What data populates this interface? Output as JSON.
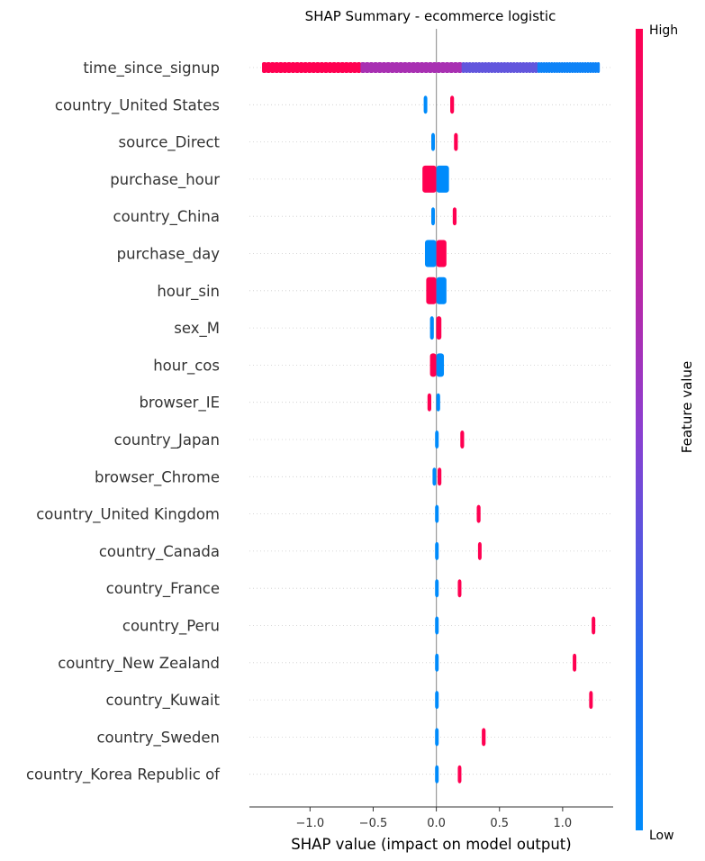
{
  "chart_data": {
    "type": "scatter",
    "title": "SHAP Summary - ecommerce logistic",
    "xlabel": "SHAP value (impact on model output)",
    "ylabel": "",
    "xlim": [
      -1.48,
      1.4
    ],
    "xticks": [
      -1.0,
      -0.5,
      0.0,
      0.5,
      1.0
    ],
    "xtick_labels": [
      "−1.0",
      "−0.5",
      "0.0",
      "0.5",
      "1.0"
    ],
    "colorbar": {
      "label": "Feature value",
      "high": "High",
      "low": "Low",
      "low_color": "#008bfb",
      "high_color": "#ff0051"
    },
    "features": [
      {
        "name": "time_since_signup",
        "groups": [
          {
            "from": -1.38,
            "to": -0.6,
            "value": "high"
          },
          {
            "from": -0.6,
            "to": 0.2,
            "value": "mid"
          },
          {
            "from": 0.2,
            "to": 0.8,
            "value": "midlow"
          },
          {
            "from": 0.8,
            "to": 1.29,
            "value": "low"
          }
        ]
      },
      {
        "name": "country_United States",
        "groups": [
          {
            "from": -0.1,
            "to": -0.08,
            "value": "low"
          },
          {
            "from": 0.11,
            "to": 0.14,
            "value": "high"
          }
        ]
      },
      {
        "name": "source_Direct",
        "groups": [
          {
            "from": -0.04,
            "to": -0.02,
            "value": "low"
          },
          {
            "from": 0.14,
            "to": 0.17,
            "value": "high"
          }
        ]
      },
      {
        "name": "purchase_hour",
        "groups": [
          {
            "from": -0.11,
            "to": 0.0,
            "value": "high"
          },
          {
            "from": 0.0,
            "to": 0.1,
            "value": "low"
          }
        ]
      },
      {
        "name": "country_China",
        "groups": [
          {
            "from": -0.04,
            "to": -0.02,
            "value": "low"
          },
          {
            "from": 0.13,
            "to": 0.16,
            "value": "high"
          }
        ]
      },
      {
        "name": "purchase_day",
        "groups": [
          {
            "from": -0.09,
            "to": 0.0,
            "value": "low"
          },
          {
            "from": 0.0,
            "to": 0.08,
            "value": "high"
          }
        ]
      },
      {
        "name": "hour_sin",
        "groups": [
          {
            "from": -0.08,
            "to": 0.0,
            "value": "high"
          },
          {
            "from": 0.0,
            "to": 0.08,
            "value": "low"
          }
        ]
      },
      {
        "name": "sex_M",
        "groups": [
          {
            "from": -0.05,
            "to": -0.02,
            "value": "low"
          },
          {
            "from": 0.0,
            "to": 0.04,
            "value": "high"
          }
        ]
      },
      {
        "name": "hour_cos",
        "groups": [
          {
            "from": -0.05,
            "to": 0.0,
            "value": "high"
          },
          {
            "from": 0.0,
            "to": 0.06,
            "value": "low"
          }
        ]
      },
      {
        "name": "browser_IE",
        "groups": [
          {
            "from": -0.07,
            "to": -0.04,
            "value": "high"
          },
          {
            "from": 0.0,
            "to": 0.03,
            "value": "low"
          }
        ]
      },
      {
        "name": "country_Japan",
        "groups": [
          {
            "from": -0.01,
            "to": 0.01,
            "value": "low"
          },
          {
            "from": 0.19,
            "to": 0.22,
            "value": "high"
          }
        ]
      },
      {
        "name": "browser_Chrome",
        "groups": [
          {
            "from": -0.03,
            "to": -0.01,
            "value": "low"
          },
          {
            "from": 0.01,
            "to": 0.04,
            "value": "high"
          }
        ]
      },
      {
        "name": "country_United Kingdom",
        "groups": [
          {
            "from": -0.01,
            "to": 0.01,
            "value": "low"
          },
          {
            "from": 0.32,
            "to": 0.35,
            "value": "high"
          }
        ]
      },
      {
        "name": "country_Canada",
        "groups": [
          {
            "from": -0.01,
            "to": 0.01,
            "value": "low"
          },
          {
            "from": 0.33,
            "to": 0.35,
            "value": "high"
          }
        ]
      },
      {
        "name": "country_France",
        "groups": [
          {
            "from": -0.01,
            "to": 0.01,
            "value": "low"
          },
          {
            "from": 0.17,
            "to": 0.19,
            "value": "high"
          }
        ]
      },
      {
        "name": "country_Peru",
        "groups": [
          {
            "from": -0.01,
            "to": 0.01,
            "value": "low"
          },
          {
            "from": 1.23,
            "to": 1.25,
            "value": "high"
          }
        ]
      },
      {
        "name": "country_New Zealand",
        "groups": [
          {
            "from": -0.01,
            "to": 0.01,
            "value": "low"
          },
          {
            "from": 1.08,
            "to": 1.1,
            "value": "high"
          }
        ]
      },
      {
        "name": "country_Kuwait",
        "groups": [
          {
            "from": -0.01,
            "to": 0.01,
            "value": "low"
          },
          {
            "from": 1.21,
            "to": 1.23,
            "value": "high"
          }
        ]
      },
      {
        "name": "country_Sweden",
        "groups": [
          {
            "from": -0.01,
            "to": 0.01,
            "value": "low"
          },
          {
            "from": 0.36,
            "to": 0.39,
            "value": "high"
          }
        ]
      },
      {
        "name": "country_Korea Republic of",
        "groups": [
          {
            "from": -0.01,
            "to": 0.01,
            "value": "low"
          },
          {
            "from": 0.17,
            "to": 0.19,
            "value": "high"
          }
        ]
      }
    ]
  }
}
